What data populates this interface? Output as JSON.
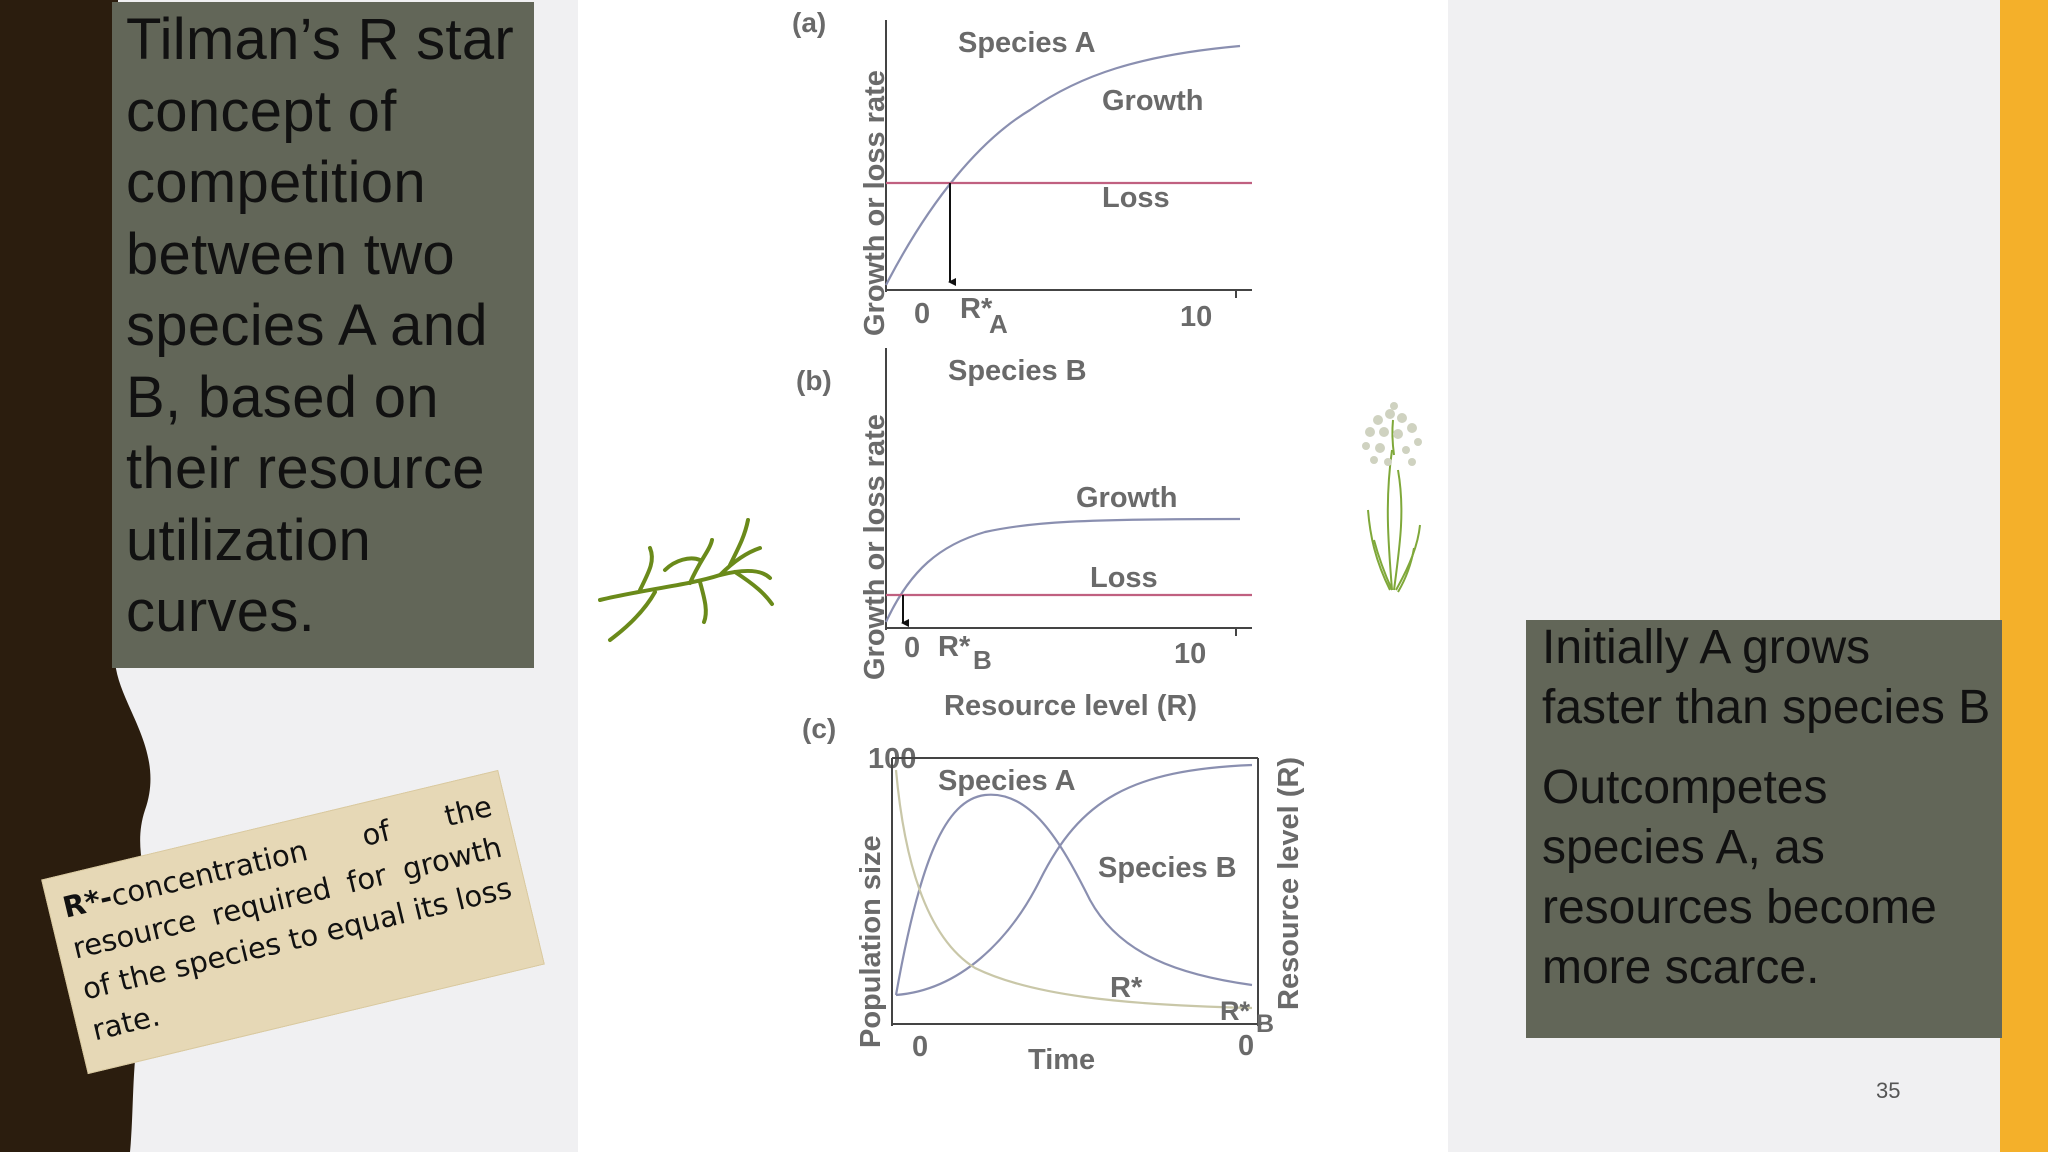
{
  "slide": {
    "title": "Tilman’s R star concept of competition between two species A and B, based on their resource utilization curves.",
    "definition_term": "R*-",
    "definition_rest": "concentration of the resource required for growth of the species to equal its loss rate.",
    "notes": [
      "Initially A grows faster than species B",
      "Outcompetes species A, as resources become more scarce."
    ],
    "page_number": "35",
    "colors": {
      "title_box": "#626658",
      "accent": "#f4b02a",
      "left_band": "#2b1d0e",
      "loss_line": "#c06080",
      "curve": "#8a8fb0"
    },
    "icons": [
      "small-plant-icon",
      "flowering-grass-icon"
    ]
  },
  "panels": {
    "a": {
      "tag": "(a)",
      "species": "Species A",
      "growth": "Growth",
      "loss": "Loss",
      "ylabel": "Growth or loss rate",
      "zero": "0",
      "rstar": "R*",
      "rstar_sub": "A",
      "ten": "10"
    },
    "b": {
      "tag": "(b)",
      "species": "Species B",
      "growth": "Growth",
      "loss": "Loss",
      "ylabel": "Growth or loss rate",
      "zero": "0",
      "rstar": "R*",
      "rstar_sub": "B",
      "ten": "10",
      "xlabel": "Resource level (R)"
    },
    "c": {
      "tag": "(c)",
      "top": "100",
      "species_a": "Species A",
      "species_b": "Species B",
      "rstar": "R*",
      "rstar_b": "R*",
      "rstar_b_sub": "B",
      "zero_left": "0",
      "zero_right": "0",
      "ylabel": "Population size",
      "y2label": "Resource level (R)",
      "xlabel": "Time"
    }
  }
}
